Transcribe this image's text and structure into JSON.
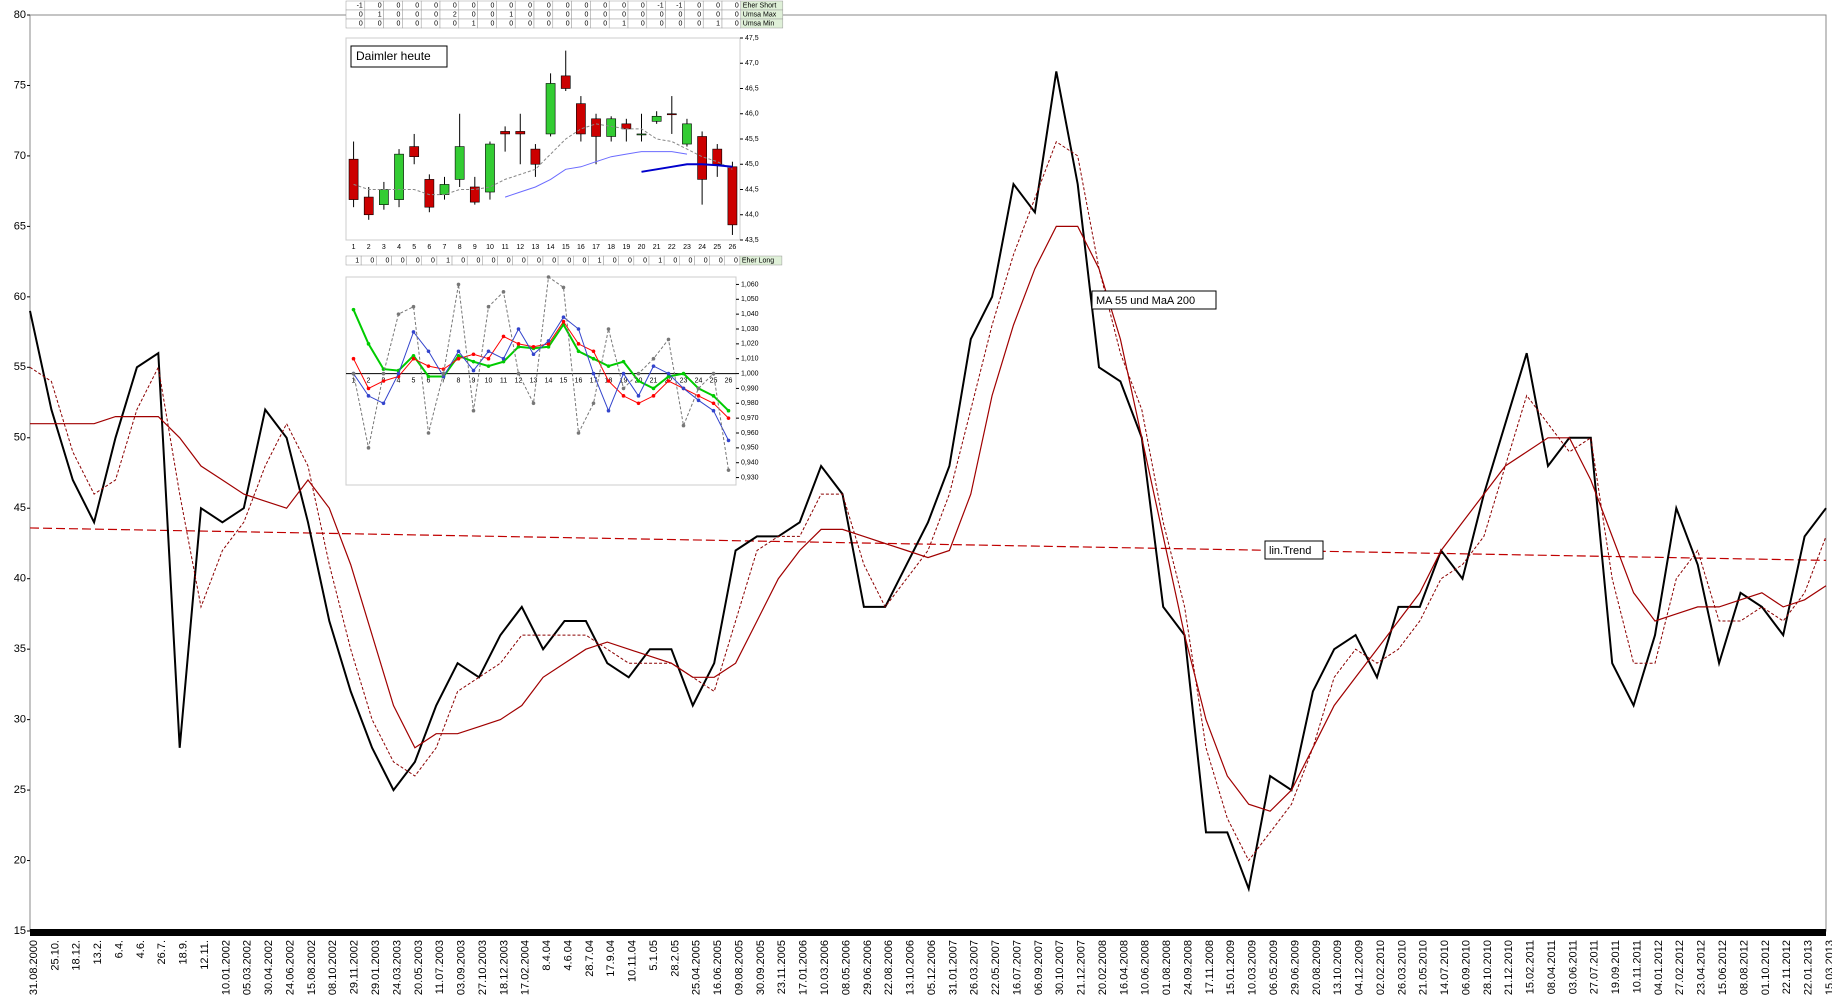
{
  "chart_data": [
    {
      "type": "line",
      "categories": [
        "31.08.2000",
        "25.10.",
        "18.12.",
        "13.2.",
        "6.4.",
        "4.6.",
        "26.7.",
        "18.9.",
        "12.11.",
        "10.01.2002",
        "05.03.2002",
        "30.04.2002",
        "24.06.2002",
        "15.08.2002",
        "08.10.2002",
        "29.11.2002",
        "29.01.2003",
        "24.03.2003",
        "20.05.2003",
        "11.07.2003",
        "03.09.2003",
        "27.10.2003",
        "18.12.2003",
        "17.02.2004",
        "8.4.04",
        "4.6.04",
        "28.7.04",
        "17.9.04",
        "10.11.04",
        "5.1.05",
        "28.2.05",
        "25.04.2005",
        "16.06.2005",
        "09.08.2005",
        "30.09.2005",
        "23.11.2005",
        "17.01.2006",
        "10.03.2006",
        "08.05.2006",
        "29.06.2006",
        "22.08.2006",
        "13.10.2006",
        "05.12.2006",
        "31.01.2007",
        "26.03.2007",
        "22.05.2007",
        "16.07.2007",
        "06.09.2007",
        "30.10.2007",
        "21.12.2007",
        "20.02.2008",
        "16.04.2008",
        "10.06.2008",
        "01.08.2008",
        "24.09.2008",
        "17.11.2008",
        "15.01.2009",
        "10.03.2009",
        "06.05.2009",
        "29.06.2009",
        "20.08.2009",
        "13.10.2009",
        "04.12.2009",
        "02.02.2010",
        "26.03.2010",
        "21.05.2010",
        "14.07.2010",
        "06.09.2010",
        "28.10.2010",
        "21.12.2010",
        "15.02.2011",
        "08.04.2011",
        "03.06.2011",
        "27.07.2011",
        "19.09.2011",
        "10.11.2011",
        "04.01.2012",
        "27.02.2012",
        "23.04.2012",
        "15.06.2012",
        "08.08.2012",
        "01.10.2012",
        "22.11.2012",
        "22.01.2013",
        "15.03.2013"
      ],
      "series": [
        {
          "color": "#000000",
          "style": "solid",
          "width": 2,
          "values": [
            59,
            52,
            47,
            44,
            50,
            55,
            56,
            28,
            45,
            44,
            45,
            52,
            50,
            44,
            37,
            32,
            28,
            25,
            27,
            31,
            34,
            33,
            36,
            38,
            35,
            37,
            37,
            34,
            33,
            35,
            35,
            31,
            34,
            42,
            43,
            43,
            44,
            48,
            46,
            38,
            38,
            41,
            44,
            48,
            57,
            60,
            68,
            66,
            76,
            68,
            55,
            54,
            50,
            38,
            36,
            22,
            22,
            18,
            26,
            25,
            32,
            35,
            36,
            33,
            38,
            38,
            42,
            40,
            46,
            51,
            56,
            48,
            50,
            50,
            34,
            31,
            36,
            45,
            41,
            34,
            39,
            38,
            36,
            43,
            45
          ]
        },
        {
          "color": "#8b0000",
          "style": "dotted",
          "width": 1,
          "values": [
            55,
            54,
            49,
            46,
            47,
            52,
            55,
            46,
            38,
            42,
            44,
            48,
            51,
            48,
            41,
            35,
            30,
            27,
            26,
            28,
            32,
            33,
            34,
            36,
            36,
            36,
            36,
            35,
            34,
            34,
            34,
            33,
            32,
            37,
            42,
            43,
            43,
            46,
            46,
            41,
            38,
            40,
            42,
            46,
            52,
            58,
            63,
            67,
            71,
            70,
            62,
            56,
            52,
            44,
            38,
            28,
            23,
            20,
            22,
            24,
            28,
            33,
            35,
            34,
            35,
            37,
            40,
            41,
            43,
            48,
            53,
            51,
            49,
            50,
            40,
            34,
            34,
            40,
            42,
            37,
            37,
            38,
            37,
            39,
            43
          ]
        },
        {
          "color": "#a00000",
          "style": "solid",
          "width": 1.2,
          "values": [
            51,
            51,
            51,
            51,
            51.5,
            51.5,
            51.5,
            50,
            48,
            47,
            46,
            45.5,
            45,
            47,
            45,
            41,
            36,
            31,
            28,
            29,
            29,
            29.5,
            30,
            31,
            33,
            34,
            35,
            35.5,
            35,
            34.5,
            34,
            33,
            33,
            34,
            37,
            40,
            42,
            43.5,
            43.5,
            43,
            42.5,
            42,
            41.5,
            42,
            46,
            53,
            58,
            62,
            65,
            65,
            62,
            57,
            50,
            43,
            36,
            30,
            26,
            24,
            23.5,
            25,
            28,
            31,
            33,
            35,
            37,
            39,
            42,
            44,
            46,
            48,
            49,
            50,
            50,
            47,
            43,
            39,
            37,
            37.5,
            38,
            38,
            38.5,
            39,
            38,
            38.5,
            39.5
          ]
        }
      ],
      "trend": {
        "start": 43.6,
        "end": 41.3,
        "color": "#c00000"
      },
      "annotations": [
        "MA 55 und MaA 200",
        "lin.Trend"
      ],
      "ylim": [
        15,
        80
      ],
      "yticks": [
        15,
        20,
        25,
        30,
        35,
        40,
        45,
        50,
        55,
        60,
        65,
        70,
        75,
        80
      ]
    },
    {
      "type": "candlestick",
      "title": "Daimler  heute",
      "categories": [
        "1",
        "2",
        "3",
        "4",
        "5",
        "6",
        "7",
        "8",
        "9",
        "10",
        "11",
        "12",
        "13",
        "14",
        "15",
        "16",
        "17",
        "18",
        "19",
        "20",
        "21",
        "22",
        "23",
        "24",
        "25",
        "26"
      ],
      "open": [
        45.1,
        44.35,
        44.2,
        44.3,
        45.35,
        44.7,
        44.4,
        44.7,
        44.55,
        44.45,
        45.65,
        45.65,
        45.3,
        45.6,
        46.75,
        46.2,
        45.9,
        45.55,
        45.8,
        45.6,
        45.85,
        46.0,
        45.4,
        45.55,
        45.3,
        44.95
      ],
      "close": [
        44.3,
        44.0,
        44.5,
        45.2,
        45.15,
        44.15,
        44.6,
        45.35,
        44.25,
        45.4,
        45.6,
        45.6,
        45.0,
        46.6,
        46.5,
        45.6,
        45.55,
        45.9,
        45.7,
        45.6,
        45.95,
        45.98,
        45.8,
        44.7,
        45.0,
        43.8
      ],
      "high": [
        45.45,
        44.55,
        44.65,
        45.3,
        45.6,
        44.8,
        44.75,
        46.0,
        44.75,
        45.45,
        45.75,
        46.0,
        45.4,
        46.8,
        47.25,
        46.35,
        46.0,
        45.95,
        45.9,
        46.0,
        46.05,
        46.35,
        45.9,
        45.65,
        45.4,
        45.05
      ],
      "low": [
        44.15,
        43.9,
        44.1,
        44.15,
        45.0,
        44.05,
        44.3,
        44.55,
        44.2,
        44.3,
        45.25,
        45.0,
        44.75,
        45.55,
        46.45,
        45.45,
        45.0,
        45.45,
        45.45,
        45.45,
        45.8,
        45.6,
        45.35,
        44.2,
        44.75,
        43.6
      ],
      "up_color": "#33cc33",
      "down_color": "#cc0000",
      "series": [
        {
          "color": "#888888",
          "style": "dotted",
          "values": [
            44.6,
            44.5,
            44.5,
            44.5,
            44.5,
            44.4,
            44.4,
            44.5,
            44.5,
            44.55,
            44.7,
            44.8,
            44.9,
            45.2,
            45.5,
            45.7,
            45.8,
            45.75,
            45.7,
            45.7,
            45.5,
            45.45,
            45.3,
            45.15,
            45.05,
            44.9
          ]
        },
        {
          "color": "#6b6bff",
          "style": "solid",
          "values": [
            null,
            null,
            null,
            null,
            null,
            null,
            null,
            null,
            null,
            null,
            44.35,
            44.45,
            44.55,
            44.7,
            44.9,
            44.95,
            45.05,
            45.15,
            45.2,
            45.25,
            45.25,
            45.25,
            45.2,
            null,
            null,
            null
          ]
        },
        {
          "color": "#0000cc",
          "style": "solid",
          "width": 2,
          "values": [
            null,
            null,
            null,
            null,
            null,
            null,
            null,
            null,
            null,
            null,
            null,
            null,
            null,
            null,
            null,
            null,
            null,
            null,
            null,
            44.85,
            44.9,
            44.95,
            45.0,
            45.0,
            44.98,
            44.95
          ]
        }
      ],
      "ylim": [
        43.5,
        47.5
      ],
      "yticks": [
        {
          "value": 43.5,
          "label": "43,5"
        },
        {
          "value": 44,
          "label": "44,0"
        },
        {
          "value": 44.5,
          "label": "44,5"
        },
        {
          "value": 45,
          "label": "45,0"
        },
        {
          "value": 45.5,
          "label": "45,5"
        },
        {
          "value": 46,
          "label": "46,0"
        },
        {
          "value": 46.5,
          "label": "46,5"
        },
        {
          "value": 47,
          "label": "47,0"
        },
        {
          "value": 47.5,
          "label": "47,5"
        }
      ]
    },
    {
      "type": "line",
      "categories": [
        "1",
        "2",
        "3",
        "4",
        "5",
        "6",
        "7",
        "8",
        "9",
        "10",
        "11",
        "12",
        "13",
        "14",
        "15",
        "16",
        "17",
        "18",
        "19",
        "20",
        "21",
        "22",
        "23",
        "24",
        "25",
        "26"
      ],
      "series": [
        {
          "color": "#00cc00",
          "style": "solid",
          "width": 2,
          "values": [
            1.043,
            1.02,
            1.003,
            1.002,
            1.012,
            0.998,
            0.998,
            1.012,
            1.008,
            1.005,
            1.008,
            1.018,
            1.017,
            1.018,
            1.033,
            1.015,
            1.01,
            1.005,
            1.008,
            0.995,
            0.99,
            0.998,
            1.0,
            0.99,
            0.985,
            0.975
          ]
        },
        {
          "color": "#ff0000",
          "style": "solid",
          "width": 1,
          "values": [
            1.01,
            0.99,
            0.995,
            0.998,
            1.01,
            1.005,
            1.003,
            1.01,
            1.013,
            1.01,
            1.025,
            1.02,
            1.018,
            1.02,
            1.035,
            1.02,
            1.015,
            0.995,
            0.985,
            0.98,
            0.985,
            0.995,
            0.99,
            0.985,
            0.98,
            0.97
          ]
        },
        {
          "color": "#3344cc",
          "style": "solid",
          "width": 1,
          "values": [
            1.0,
            0.985,
            0.98,
            1.0,
            1.028,
            1.015,
            0.998,
            1.015,
            1.002,
            1.015,
            1.01,
            1.03,
            1.013,
            1.022,
            1.038,
            1.03,
            1.0,
            0.975,
            1.0,
            0.985,
            1.005,
            1.0,
            0.99,
            0.982,
            0.975,
            0.955
          ]
        },
        {
          "color": "#777777",
          "style": "dotted",
          "width": 1,
          "values": [
            1.0,
            0.95,
            1.0,
            1.04,
            1.045,
            0.96,
            1.0,
            1.06,
            0.975,
            1.045,
            1.055,
            1.0,
            0.98,
            1.065,
            1.058,
            0.96,
            0.98,
            1.03,
            0.99,
            1.0,
            1.01,
            1.023,
            0.965,
            0.99,
            1.0,
            0.935
          ]
        }
      ],
      "baseline": 1,
      "ylim": [
        0.925,
        1.065
      ],
      "yticks": [
        {
          "value": 0.93,
          "label": "0,930"
        },
        {
          "value": 0.94,
          "label": "0,940"
        },
        {
          "value": 0.95,
          "label": "0,950"
        },
        {
          "value": 0.96,
          "label": "0,960"
        },
        {
          "value": 0.97,
          "label": "0,970"
        },
        {
          "value": 0.98,
          "label": "0,980"
        },
        {
          "value": 0.99,
          "label": "0,990"
        },
        {
          "value": 1.0,
          "label": "1,000"
        },
        {
          "value": 1.01,
          "label": "1,010"
        },
        {
          "value": 1.02,
          "label": "1,020"
        },
        {
          "value": 1.03,
          "label": "1,030"
        },
        {
          "value": 1.04,
          "label": "1,040"
        },
        {
          "value": 1.05,
          "label": "1,050"
        },
        {
          "value": 1.06,
          "label": "1,060"
        }
      ]
    }
  ],
  "tables": [
    {
      "label": "Eher Short",
      "cells": [
        "-1",
        "0",
        "0",
        "0",
        "0",
        "0",
        "0",
        "0",
        "0",
        "0",
        "0",
        "0",
        "0",
        "0",
        "0",
        "0",
        "-1",
        "-1",
        "0",
        "0",
        "0"
      ]
    },
    {
      "label": "Umsa Max",
      "cells": [
        "0",
        "1",
        "0",
        "0",
        "0",
        "2",
        "0",
        "0",
        "1",
        "0",
        "0",
        "0",
        "0",
        "0",
        "0",
        "0",
        "0",
        "0",
        "0",
        "0",
        "0"
      ]
    },
    {
      "label": "Umsa Min",
      "cells": [
        "0",
        "0",
        "0",
        "0",
        "0",
        "0",
        "1",
        "0",
        "0",
        "0",
        "0",
        "0",
        "0",
        "0",
        "1",
        "0",
        "0",
        "0",
        "0",
        "1",
        "0"
      ]
    },
    {
      "label": "Eher Long",
      "cells": [
        "1",
        "0",
        "0",
        "0",
        "0",
        "0",
        "1",
        "0",
        "0",
        "0",
        "0",
        "0",
        "0",
        "0",
        "0",
        "0",
        "1",
        "0",
        "0",
        "0",
        "1",
        "0",
        "0",
        "0",
        "0",
        "0"
      ]
    }
  ]
}
